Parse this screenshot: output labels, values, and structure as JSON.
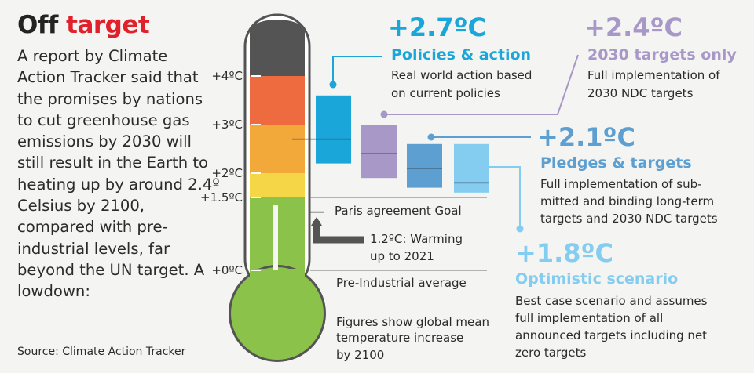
{
  "header": {
    "title_part1": "Off",
    "title_part2": "target"
  },
  "intro": "A report by Climate Action Tracker said that the promises by nations to cut greenhouse gas emissions by 2030 will still result in the Earth to heating up by around 2.4º Celsius by 2100, compared with pre-industrial levels, far beyond the UN target. A lowdown:",
  "source": "Source: Climate Action Tracker",
  "colors": {
    "policies": "#1aa6d9",
    "targets2030": "#a898c8",
    "pledges": "#5d9fd0",
    "optimistic": "#84cdf0",
    "thermo_green": "#8bc34a",
    "thermo_yellow": "#f5d646",
    "thermo_orange": "#f3a93a",
    "thermo_red": "#ee6a3f",
    "thermo_dark": "#555454"
  },
  "chart_data": {
    "type": "range-bar",
    "ylabel": "",
    "ylim": [
      0,
      5
    ],
    "yticks": [
      {
        "value": 4,
        "label": "+4ºC"
      },
      {
        "value": 3,
        "label": "+3ºC"
      },
      {
        "value": 2,
        "label": "+2ºC"
      },
      {
        "value": 1.5,
        "label": "+1.5ºC"
      },
      {
        "value": 0,
        "label": "+0ºC"
      }
    ],
    "thermometer_bands": [
      {
        "from": 0,
        "to": 1.5,
        "color": "#8bc34a"
      },
      {
        "from": 1.5,
        "to": 2,
        "color": "#f5d646"
      },
      {
        "from": 2,
        "to": 3,
        "color": "#f3a93a"
      },
      {
        "from": 3,
        "to": 4,
        "color": "#ee6a3f"
      },
      {
        "from": 4,
        "to": 5,
        "color": "#555454"
      }
    ],
    "current_warming": 1.2,
    "series": [
      {
        "key": "policies",
        "headline": "+2.7ºC",
        "label": "Policies & action",
        "description": "Real world action based on current policies",
        "low": 2.2,
        "high": 3.6,
        "mid": 2.7,
        "color": "#1aa6d9"
      },
      {
        "key": "targets2030",
        "headline": "+2.4ºC",
        "label": "2030 targets only",
        "description": "Full implementation of 2030 NDC targets",
        "low": 1.9,
        "high": 3.0,
        "mid": 2.4,
        "color": "#a898c8"
      },
      {
        "key": "pledges",
        "headline": "+2.1ºC",
        "label": "Pledges & targets",
        "description": "Full implementation of submitted and binding long-term targets and 2030 NDC targets",
        "low": 1.7,
        "high": 2.6,
        "mid": 2.1,
        "color": "#5d9fd0"
      },
      {
        "key": "optimistic",
        "headline": "+1.8ºC",
        "label": "Optimistic scenario",
        "description": "Best case scenario and assumes full implementation of all announced targets including net zero targets",
        "low": 1.6,
        "high": 2.6,
        "mid": 1.8,
        "color": "#84cdf0"
      }
    ],
    "annotations": {
      "paris": "Paris agreement Goal",
      "warming_line1": "1.2ºC: Warming",
      "warming_line2": "up to 2021",
      "preindustrial": "Pre-Industrial average",
      "figures_line1": "Figures show global mean",
      "figures_line2": "temperature increase",
      "figures_line3": "by 2100"
    }
  }
}
